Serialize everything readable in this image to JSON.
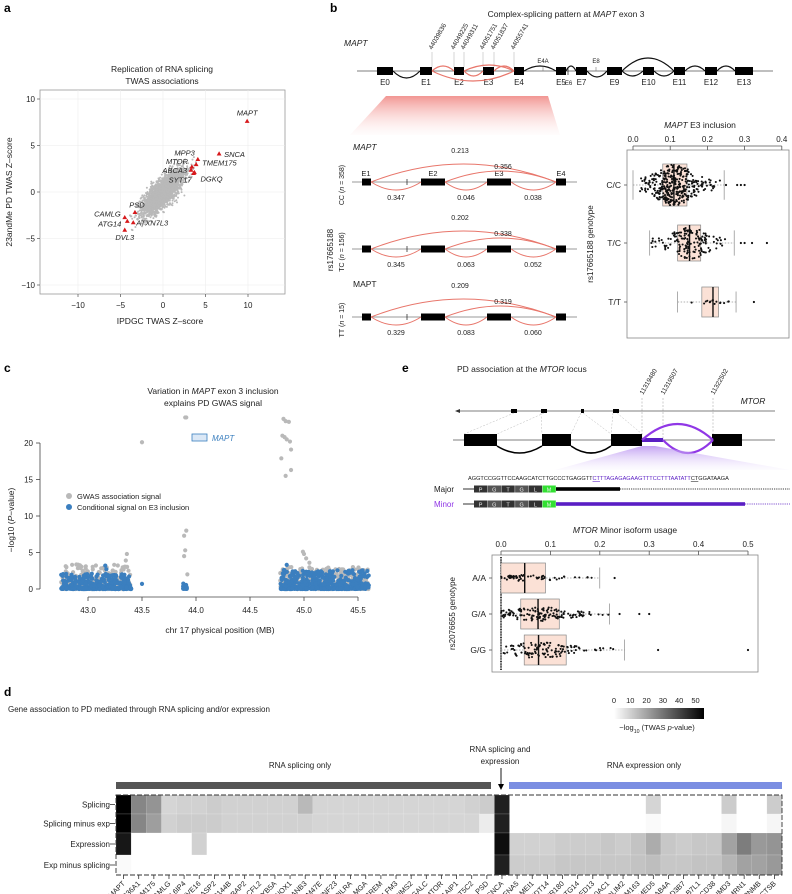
{
  "panel_labels": {
    "a": "a",
    "b": "b",
    "c": "c",
    "d": "d",
    "e": "e"
  },
  "colors": {
    "red": "#d7191c",
    "gray_point": "#b9b9b9",
    "blue_point": "#3b7fbf",
    "salmon_arc": "#e8766b",
    "box_fill": "#fbe1d6",
    "purple": "#9037e6",
    "dark_purple": "#5a1ec4",
    "green": "#33e033",
    "splicing_bar": "#555555",
    "expression_bar": "#7b8ee2"
  },
  "panel_b": {
    "title_pre": "Complex-splicing pattern at ",
    "title_gene": "MAPT",
    "title_post": " exon 3",
    "gene": "MAPT",
    "exons": [
      "E0",
      "E1",
      "E2",
      "E3",
      "E4",
      "E5",
      "E6",
      "E7",
      "E9",
      "E10",
      "E11",
      "E12",
      "E13"
    ],
    "minor_exons": [
      "E4A",
      "E8"
    ],
    "coordinates": [
      "44039836",
      "44049225",
      "44049311",
      "44051751",
      "44051837",
      "44055741"
    ],
    "sashimi_gene_italic": "MAPT",
    "sashimi_gene_plain": "MAPT",
    "sashimi_exons": [
      "E1",
      "E2",
      "E3",
      "E4"
    ],
    "snp": "rs17665188",
    "rows": [
      {
        "prefix": "CC (",
        "n": "n",
        "suffix": " = 358)",
        "skip_e1_e4": "0.213",
        "skip_e2_e4": "0.356",
        "e1_e2": "0.347",
        "e2_e3": "0.046",
        "e3_e4": "0.038"
      },
      {
        "prefix": "TC (",
        "n": "n",
        "suffix": " = 156)",
        "skip_e1_e4": "0.202",
        "skip_e2_e4": "0.338",
        "e1_e2": "0.345",
        "e2_e3": "0.063",
        "e3_e4": "0.052"
      },
      {
        "prefix": "TT (",
        "n": "n",
        "suffix": " = 15)",
        "skip_e1_e4": "0.209",
        "skip_e2_e4": "0.319",
        "e1_e2": "0.329",
        "e2_e3": "0.083",
        "e3_e4": "0.060"
      }
    ]
  },
  "panel_e": {
    "title_pre": "PD association at the ",
    "title_gene": "MTOR",
    "title_post": " locus",
    "gene": "MTOR",
    "coordinates": [
      "11319480",
      "11319507",
      "11322502"
    ],
    "seq_pre": "AGGTCCGGTTCCAAGCATCTTGCCCTGAGGTT",
    "seq_purple_ul": "CT",
    "seq_purple": "TTAGAGAGAAGTTTCCTTTAATATT",
    "seq_black_ul": "CT",
    "seq_post": "GGATAAGA",
    "major_label": "Major",
    "minor_label": "Minor",
    "aa": [
      "P",
      "G",
      "T",
      "G",
      "L",
      "M"
    ]
  },
  "chart_data": [
    {
      "panel": "a",
      "type": "scatter",
      "title": [
        "Replication of RNA splicing",
        "TWAS associations"
      ],
      "xlabel": "IPDGC TWAS Z–score",
      "ylabel": "23andMe PD TWAS Z–score",
      "xlim": [
        -14,
        14.5
      ],
      "ylim": [
        -11,
        11
      ],
      "xticks": [
        -10,
        -5,
        0,
        5,
        10
      ],
      "xtick_labels": [
        "−10",
        "−5",
        "0",
        "5",
        "10"
      ],
      "yticks": [
        10,
        5,
        0,
        -5,
        -10
      ],
      "ytick_labels": [
        "10",
        "5",
        "0",
        "−5",
        "−10"
      ],
      "grid": true,
      "background": {
        "description_n": 2500,
        "correlation": 0.6,
        "x_sd": 1.1,
        "y_sd": 1.2
      },
      "highlighted": [
        {
          "gene": "MAPT",
          "x": 9.9,
          "y": 7.6
        },
        {
          "gene": "SNCA",
          "x": 6.6,
          "y": 4.1
        },
        {
          "gene": "MPP3",
          "x": 4.1,
          "y": 3.5
        },
        {
          "gene": "TMEM175",
          "x": 3.9,
          "y": 2.95
        },
        {
          "gene": "MTOR",
          "x": 3.4,
          "y": 2.7
        },
        {
          "gene": "ABCA3",
          "x": 3.3,
          "y": 2.35
        },
        {
          "gene": "SYT17",
          "x": 3.6,
          "y": 2.0
        },
        {
          "gene": "DGKQ",
          "x": 3.7,
          "y": 2.1
        },
        {
          "gene": "PSD",
          "x": -3.3,
          "y": -2.2
        },
        {
          "gene": "CAMLG",
          "x": -4.5,
          "y": -2.75
        },
        {
          "gene": "ATG14",
          "x": -4.2,
          "y": -3.15
        },
        {
          "gene": "ATXN7L3",
          "x": -3.5,
          "y": -3.3
        },
        {
          "gene": "DVL3",
          "x": -4.5,
          "y": -4.1
        }
      ]
    },
    {
      "panel": "b",
      "type": "box",
      "title_gene": "MAPT",
      "title_post": " E3 inclusion",
      "ylabel": "rs17665188 genotype",
      "xlim": [
        0,
        0.4
      ],
      "xticks": [
        0,
        0.1,
        0.2,
        0.3,
        0.4
      ],
      "xtick_labels": [
        "0.0",
        "0.1",
        "0.2",
        "0.3",
        "0.4"
      ],
      "groups": [
        {
          "label": "C/C",
          "n": 358,
          "whisker_low": 0.0,
          "q1": 0.08,
          "median": 0.11,
          "q3": 0.145,
          "whisker_high": 0.245,
          "outliers": [
            0.25,
            0.28,
            0.29,
            0.3
          ]
        },
        {
          "label": "T/C",
          "n": 156,
          "whisker_low": 0.045,
          "q1": 0.12,
          "median": 0.152,
          "q3": 0.182,
          "whisker_high": 0.272,
          "outliers": [
            0.29,
            0.3,
            0.32,
            0.36
          ]
        },
        {
          "label": "T/T",
          "n": 15,
          "whisker_low": 0.12,
          "q1": 0.185,
          "median": 0.215,
          "q3": 0.23,
          "whisker_high": 0.277,
          "outliers": [
            0.325
          ]
        }
      ]
    },
    {
      "panel": "c",
      "type": "scatter",
      "title_line1_pre": "Variation in ",
      "title_gene": "MAPT",
      "title_line1_post": " exon 3 inclusion",
      "title_line2": "explains PD GWAS signal",
      "xlabel": "chr 17 physical position (MB)",
      "ylabel_pre": "−log10 (",
      "ylabel_p": "P",
      "ylabel_post": "−value)",
      "xticks": [
        43.0,
        43.5,
        44.0,
        44.5,
        45.0,
        45.5
      ],
      "xtick_labels": [
        "43.0",
        "43.5",
        "44.0",
        "44.5",
        "45.0",
        "45.5"
      ],
      "yticks": [
        0,
        5,
        10,
        15,
        20
      ],
      "ytick_labels": [
        "0",
        "5",
        "10",
        "15",
        "20"
      ],
      "gene_box": {
        "label": "MAPT",
        "start": 43.97,
        "end": 44.1
      },
      "legend": [
        "GWAS association signal",
        "Conditional signal on E3 inclusion"
      ],
      "legend_position": "left",
      "series": [
        {
          "name": "GWAS association signal",
          "peaks": [
            [
              43.35,
              3.9
            ],
            [
              43.36,
              4.8
            ],
            [
              43.5,
              20.1
            ],
            [
              43.9,
              23.5
            ],
            [
              43.91,
              23.5
            ],
            [
              43.89,
              7.3
            ],
            [
              43.91,
              8.0
            ],
            [
              43.9,
              5.3
            ],
            [
              43.89,
              4.5
            ],
            [
              43.92,
              2.0
            ],
            [
              44.81,
              23.3
            ],
            [
              44.83,
              23.0
            ],
            [
              44.86,
              22.9
            ],
            [
              44.8,
              21.0
            ],
            [
              44.82,
              20.8
            ],
            [
              44.84,
              20.5
            ],
            [
              44.87,
              20.2
            ],
            [
              44.88,
              19.1
            ],
            [
              44.79,
              17.9
            ],
            [
              44.88,
              16.3
            ],
            [
              44.83,
              15.5
            ],
            [
              44.99,
              5.1
            ],
            [
              45.0,
              4.8
            ],
            [
              45.02,
              4.2
            ],
            [
              45.05,
              3.6
            ]
          ],
          "background_regions": [
            {
              "x": [
                42.75,
                43.4
              ],
              "y_max": 3.4,
              "n": 260
            },
            {
              "x": [
                44.78,
                45.6
              ],
              "y_max": 3.0,
              "n": 420
            }
          ]
        },
        {
          "name": "Conditional signal on E3 inclusion",
          "peaks": [
            [
              43.16,
              3.2
            ],
            [
              43.17,
              2.7
            ],
            [
              43.5,
              0.7
            ],
            [
              44.84,
              3.3
            ]
          ],
          "background_regions": [
            {
              "x": [
                42.75,
                43.4
              ],
              "y_max": 2.1,
              "n": 300
            },
            {
              "x": [
                43.88,
                43.92
              ],
              "y_max": 0.8,
              "n": 20
            },
            {
              "x": [
                44.78,
                45.6
              ],
              "y_max": 2.6,
              "n": 480
            }
          ]
        }
      ]
    },
    {
      "panel": "d",
      "type": "heatmap",
      "title": "Gene association to PD mediated through RNA splicing and/or expression",
      "colorbar_label_pre": "−log",
      "colorbar_label_sub": "10",
      "colorbar_label_post": " (TWAS ",
      "colorbar_label_p": "p",
      "colorbar_label_end": "-value)",
      "colorbar_ticks": [
        "0",
        "10",
        "20",
        "30",
        "40",
        "50"
      ],
      "colorbar_range": [
        0,
        55
      ],
      "groups": [
        {
          "label": "RNA splicing only",
          "count": 25
        },
        {
          "label_line1": "RNA splicing and",
          "label_line2": "expression",
          "count": 1
        },
        {
          "label": "RNA expression only",
          "count": 18
        }
      ],
      "rows": [
        "Splicing",
        "Splicing minus exp",
        "Expression",
        "Exp minus splicing"
      ],
      "genes": [
        "MAPT",
        "SLC36A1",
        "TMEM175",
        "CAMLG",
        "ARL6IP4",
        "ZFYVE16",
        "CLASP2",
        "CCDC144B",
        "UBAP2",
        "CFL2",
        "CYB5A",
        "PKNOX1",
        "ZRANB3",
        "FAM47E",
        "ZNF23",
        "PILRA",
        "MGA",
        "CREM",
        "OLFM3",
        "RIMS2",
        "GALC",
        "MTOR",
        "TOR1AIP1",
        "NT5C2",
        "PSD",
        "SNCA",
        "DFNA5",
        "MEI1",
        "NUDT14",
        "GPR180",
        "ATG14",
        "MED13",
        "FRA10AC1",
        "PDLIM2",
        "TMEM163",
        "TMED5",
        "RAB4A",
        "HSD3B7",
        "RAB7L1",
        "CD38",
        "NMD3",
        "MMRN1",
        "GPNMB",
        "CTSB"
      ],
      "values": [
        [
          55,
          26,
          23,
          9,
          10,
          10,
          11,
          10,
          10,
          10,
          10,
          10,
          15,
          9,
          9,
          9,
          9,
          9,
          9,
          9,
          9,
          9,
          9,
          10,
          11,
          48,
          0,
          0,
          0,
          0,
          0,
          0,
          0,
          0,
          0,
          9,
          0,
          0,
          0,
          0,
          11,
          0,
          0,
          11
        ],
        [
          55,
          26,
          21,
          10,
          11,
          11,
          11,
          10,
          10,
          10,
          10,
          10,
          10,
          9,
          9,
          9,
          9,
          9,
          9,
          9,
          9,
          9,
          9,
          9,
          4,
          48,
          0,
          0,
          0,
          0,
          0,
          0,
          0,
          0,
          0,
          1,
          0,
          0,
          0,
          0,
          2,
          0,
          0,
          2
        ],
        [
          50,
          0,
          0,
          0,
          0,
          10,
          0,
          0,
          0,
          0,
          0,
          0,
          0,
          0,
          0,
          0,
          0,
          0,
          0,
          0,
          0,
          0,
          0,
          0,
          0,
          52,
          10,
          10,
          10,
          11,
          11,
          11,
          12,
          11,
          13,
          18,
          12,
          11,
          12,
          12,
          20,
          28,
          22,
          23
        ],
        [
          1,
          0,
          0,
          0,
          0,
          0,
          0,
          0,
          0,
          0,
          0,
          0,
          0,
          0,
          0,
          0,
          0,
          0,
          0,
          0,
          0,
          0,
          0,
          0,
          0,
          48,
          11,
          11,
          11,
          12,
          12,
          12,
          12,
          12,
          13,
          14,
          12,
          12,
          13,
          13,
          16,
          20,
          20,
          22
        ]
      ]
    },
    {
      "panel": "e",
      "type": "box",
      "title_gene": "MTOR",
      "title_post": " Minor isoform usage",
      "ylabel": "rs2076655 genotype",
      "xlim": [
        0,
        0.5
      ],
      "xticks": [
        0,
        0.1,
        0.2,
        0.3,
        0.4,
        0.5
      ],
      "xtick_labels": [
        "0.0",
        "0.1",
        "0.2",
        "0.3",
        "0.4",
        "0.5"
      ],
      "groups": [
        {
          "label": "A/A",
          "whisker_low": 0.0,
          "q1": 0.0,
          "median": 0.048,
          "q3": 0.09,
          "whisker_high": 0.2,
          "outliers": [
            0.23
          ]
        },
        {
          "label": "G/A",
          "whisker_low": 0.0,
          "q1": 0.04,
          "median": 0.075,
          "q3": 0.118,
          "whisker_high": 0.22,
          "outliers": [
            0.24,
            0.28,
            0.3
          ]
        },
        {
          "label": "G/G",
          "whisker_low": 0.0,
          "q1": 0.047,
          "median": 0.076,
          "q3": 0.132,
          "whisker_high": 0.25,
          "outliers": [
            0.318,
            0.5
          ]
        }
      ]
    }
  ]
}
